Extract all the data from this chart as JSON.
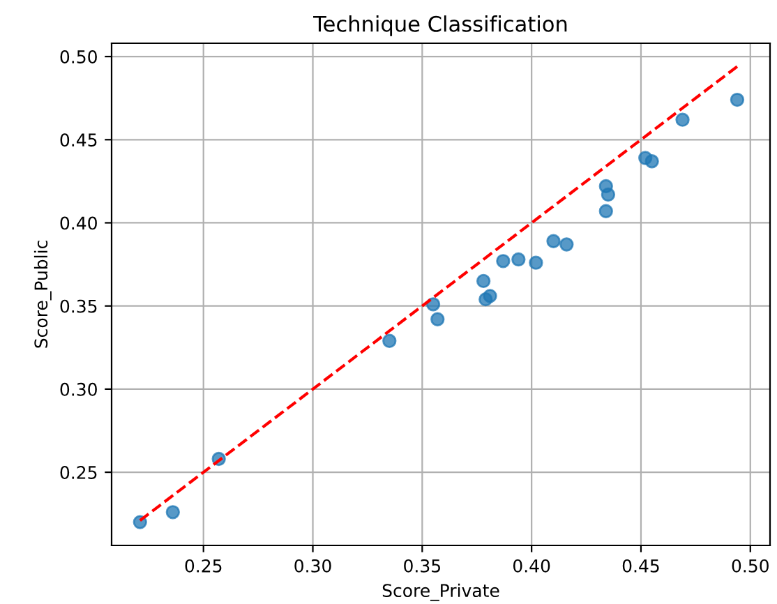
{
  "chart_data": {
    "type": "scatter",
    "title": "Technique Classification",
    "xlabel": "Score_Private",
    "ylabel": "Score_Public",
    "xlim": [
      0.208,
      0.509
    ],
    "ylim": [
      0.206,
      0.508
    ],
    "xticks": [
      {
        "value": 0.25,
        "label": "0.25"
      },
      {
        "value": 0.3,
        "label": "0.30"
      },
      {
        "value": 0.35,
        "label": "0.35"
      },
      {
        "value": 0.4,
        "label": "0.40"
      },
      {
        "value": 0.45,
        "label": "0.45"
      },
      {
        "value": 0.5,
        "label": "0.50"
      }
    ],
    "yticks": [
      {
        "value": 0.25,
        "label": "0.25"
      },
      {
        "value": 0.3,
        "label": "0.30"
      },
      {
        "value": 0.35,
        "label": "0.35"
      },
      {
        "value": 0.4,
        "label": "0.40"
      },
      {
        "value": 0.45,
        "label": "0.45"
      },
      {
        "value": 0.5,
        "label": "0.50"
      }
    ],
    "grid": true,
    "series": [
      {
        "color": "#1f77b4",
        "marker": "circle",
        "x": [
          0.221,
          0.236,
          0.257,
          0.335,
          0.355,
          0.357,
          0.378,
          0.379,
          0.381,
          0.387,
          0.394,
          0.402,
          0.41,
          0.416,
          0.434,
          0.434,
          0.435,
          0.452,
          0.455,
          0.469,
          0.494
        ],
        "values": [
          0.22,
          0.226,
          0.258,
          0.329,
          0.351,
          0.342,
          0.365,
          0.354,
          0.356,
          0.377,
          0.378,
          0.376,
          0.389,
          0.387,
          0.407,
          0.422,
          0.417,
          0.439,
          0.437,
          0.462,
          0.474
        ]
      },
      {
        "type": "line",
        "color": "#ff0000",
        "line_style": "dashed",
        "marker": "none",
        "x": [
          0.221,
          0.494
        ],
        "values": [
          0.221,
          0.494
        ]
      }
    ]
  }
}
